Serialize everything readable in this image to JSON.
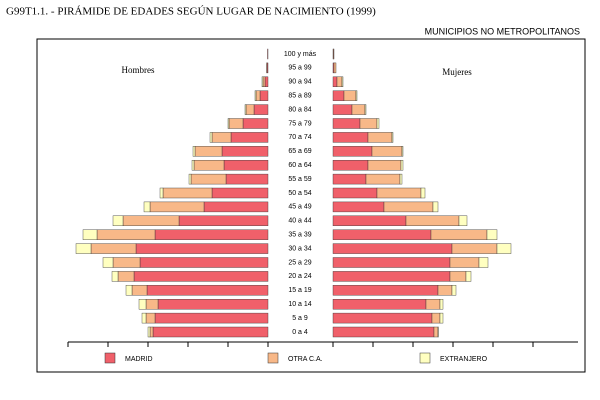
{
  "chart_data": {
    "type": "pyramid",
    "title": "G99T1.1. - PIRÁMIDE DE EDADES SEGÚN LUGAR DE NACIMIENTO (1999)",
    "subtitle": "MUNICIPIOS NO METROPOLITANOS",
    "left_label": "Hombres",
    "right_label": "Mujeres",
    "categories": [
      "0 a 4",
      "5 a 9",
      "10 a 14",
      "15 a 19",
      "20 a 24",
      "25 a 29",
      "30 a 34",
      "35 a 39",
      "40 a 44",
      "45 a 49",
      "50 a 54",
      "55 a 59",
      "60 a 64",
      "65 a 69",
      "70 a 74",
      "75 a 79",
      "80 a 84",
      "85 a 89",
      "90 a 94",
      "95 a 99",
      "100 y más"
    ],
    "xlim": [
      0,
      20
    ],
    "xticks": [
      0,
      4,
      8,
      12,
      16,
      20
    ],
    "series": [
      {
        "name": "MADRID",
        "color": "#f0606a",
        "left": [
          11.5,
          11.3,
          11.0,
          12.1,
          13.4,
          12.8,
          13.2,
          11.3,
          8.9,
          6.4,
          5.6,
          4.2,
          4.4,
          4.6,
          3.7,
          2.5,
          1.4,
          0.8,
          0.3,
          0.1,
          0.05
        ],
        "right": [
          10.1,
          9.9,
          9.3,
          10.5,
          11.7,
          11.7,
          11.9,
          9.8,
          7.3,
          5.1,
          4.4,
          3.3,
          3.5,
          3.9,
          3.5,
          2.7,
          1.9,
          1.1,
          0.4,
          0.1,
          0.05
        ]
      },
      {
        "name": "OTRA C.A.",
        "color": "#f8b888",
        "left": [
          0.3,
          0.9,
          1.2,
          1.5,
          1.6,
          2.7,
          4.5,
          5.8,
          5.6,
          5.4,
          4.9,
          3.5,
          3.0,
          2.7,
          1.9,
          1.4,
          0.8,
          0.4,
          0.2,
          0.05,
          0
        ],
        "right": [
          0.4,
          0.8,
          1.4,
          1.4,
          1.6,
          2.9,
          4.5,
          5.6,
          5.3,
          4.9,
          4.4,
          3.4,
          3.3,
          3.0,
          2.4,
          1.7,
          1.3,
          1.2,
          0.5,
          0.2,
          0.05
        ]
      },
      {
        "name": "EXTRANJERO",
        "color": "#ffffc0",
        "left": [
          0.2,
          0.4,
          0.7,
          0.6,
          0.6,
          1.0,
          1.5,
          1.4,
          1.0,
          0.6,
          0.3,
          0.2,
          0.2,
          0.2,
          0.2,
          0.1,
          0.1,
          0.1,
          0.1,
          0,
          0
        ],
        "right": [
          0.05,
          0.3,
          0.3,
          0.4,
          0.5,
          0.9,
          1.4,
          1.0,
          0.8,
          0.5,
          0.4,
          0.2,
          0.2,
          0.1,
          0.1,
          0.2,
          0.1,
          0.1,
          0.1,
          0,
          0
        ]
      }
    ]
  }
}
